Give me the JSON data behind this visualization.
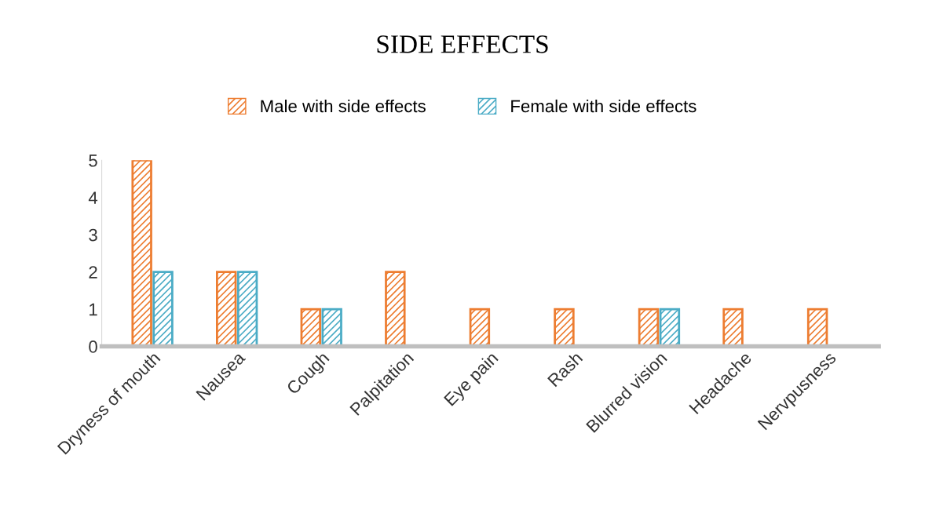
{
  "chart_data": {
    "type": "bar",
    "title": "SIDE EFFECTS",
    "categories": [
      "Dryness of mouth",
      "Nausea",
      "Cough",
      "Palpitation",
      "Eye pain",
      "Rash",
      "Blurred vision",
      "Headache",
      "Nervpusness"
    ],
    "series": [
      {
        "name": "Male with side effects",
        "color": "#ed7d31",
        "values": [
          5,
          2,
          1,
          2,
          1,
          1,
          1,
          1,
          1
        ]
      },
      {
        "name": "Female with side effects",
        "color": "#4bacc6",
        "values": [
          2,
          2,
          1,
          0,
          0,
          0,
          1,
          0,
          0
        ]
      }
    ],
    "ylim": [
      0,
      5
    ],
    "yticks": [
      0,
      1,
      2,
      3,
      4,
      5
    ],
    "grid": false,
    "legend": "top"
  }
}
